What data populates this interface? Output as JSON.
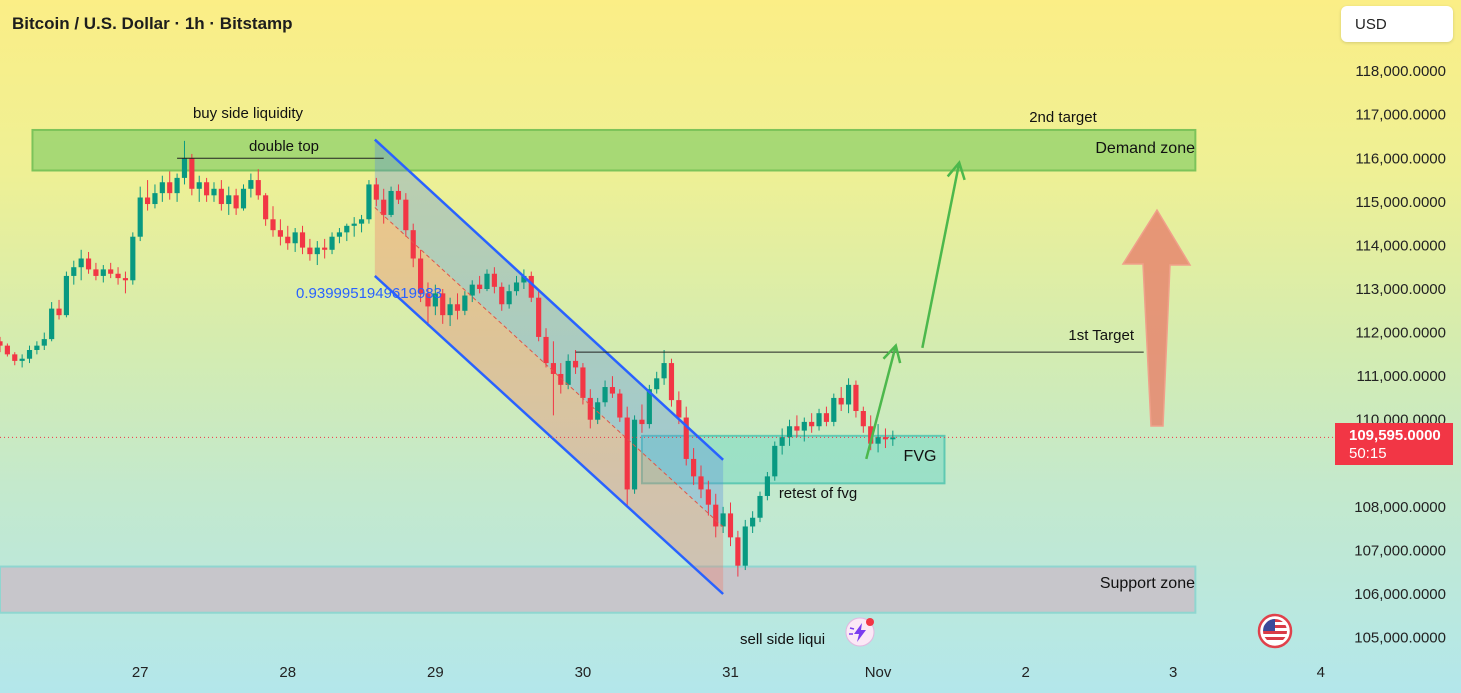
{
  "header": {
    "title": "Bitcoin / U.S. Dollar · 1h · Bitstamp",
    "currency_button": "USD"
  },
  "price_badge": {
    "price": "109,595.0000",
    "countdown": "50:15",
    "color": "#f23645"
  },
  "colors": {
    "up": "#089981",
    "down": "#f23645",
    "channel": "#2962ff",
    "zone_demand": "#8fd16b",
    "zone_support": "#c9c0c8",
    "fvg": "#7fdbc5",
    "target_arrow": "#4cb84c",
    "big_arrow": "#e6866f"
  },
  "annotations": {
    "buy_side_liquidity": "buy side liquidity",
    "double_top": "double top",
    "second_target": "2nd target",
    "demand_zone": "Demand zone",
    "first_target": "1st Target",
    "fvg": "FVG",
    "retest_of_fvg": "retest of fvg",
    "support_zone": "Support zone",
    "sell_side_liquidity": "sell side liqui",
    "fib_value": "0.9399951949619983"
  },
  "icons": {
    "flag": "us-flag-icon",
    "lightning": "lightning-badge-icon"
  },
  "chart_data": {
    "type": "candlestick",
    "y_axis": {
      "ticks": [
        "118,000.0000",
        "117,000.0000",
        "116,000.0000",
        "115,000.0000",
        "114,000.0000",
        "113,000.0000",
        "112,000.0000",
        "111,000.0000",
        "110,000.0000",
        "108,000.0000",
        "107,000.0000",
        "106,000.0000",
        "105,000.0000"
      ],
      "tick_values": [
        118000,
        117000,
        116000,
        115000,
        114000,
        113000,
        112000,
        111000,
        110000,
        108000,
        107000,
        106000,
        105000
      ],
      "ylim": [
        104600,
        118600
      ]
    },
    "x_axis": {
      "ticks": [
        "27",
        "28",
        "29",
        "30",
        "31",
        "Nov",
        "2",
        "3",
        "4"
      ],
      "tick_values": [
        27,
        28,
        29,
        30,
        31,
        32,
        33,
        34,
        35
      ],
      "xlim": [
        26.05,
        35.95
      ]
    },
    "last_price": 109595,
    "zones": [
      {
        "name": "Demand zone",
        "x": [
          26.27,
          34.15
        ],
        "y": [
          115720,
          116650
        ]
      },
      {
        "name": "Support zone",
        "x": [
          26.05,
          34.15
        ],
        "y": [
          105570,
          106630
        ]
      },
      {
        "name": "FVG",
        "x": [
          30.4,
          32.45
        ],
        "y": [
          108540,
          109630
        ]
      }
    ],
    "levels": [
      {
        "name": "1st Target",
        "price": 111550,
        "x": [
          29.95,
          33.8
        ]
      },
      {
        "name": "double top",
        "price": 116000,
        "x": [
          27.25,
          28.65
        ]
      }
    ],
    "channel": {
      "upper": [
        [
          28.59,
          116430
        ],
        [
          30.95,
          109080
        ]
      ],
      "lower": [
        [
          28.59,
          113300
        ],
        [
          30.95,
          106000
        ]
      ],
      "mid": [
        [
          28.59,
          114870
        ],
        [
          30.95,
          107540
        ]
      ]
    },
    "target_arrows": [
      {
        "from": [
          31.92,
          109100
        ],
        "to": [
          32.12,
          111700
        ]
      },
      {
        "from": [
          32.3,
          111650
        ],
        "to": [
          32.55,
          115900
        ]
      }
    ],
    "candles": [
      [
        26.05,
        111800,
        111900,
        111550,
        111700
      ],
      [
        26.1,
        111700,
        111750,
        111450,
        111500
      ],
      [
        26.15,
        111500,
        111550,
        111250,
        111350
      ],
      [
        26.2,
        111350,
        111500,
        111200,
        111400
      ],
      [
        26.25,
        111400,
        111700,
        111300,
        111600
      ],
      [
        26.3,
        111600,
        111800,
        111500,
        111700
      ],
      [
        26.35,
        111700,
        112000,
        111600,
        111850
      ],
      [
        26.4,
        111850,
        112700,
        111800,
        112550
      ],
      [
        26.45,
        112550,
        112750,
        112300,
        112400
      ],
      [
        26.5,
        112400,
        113400,
        112350,
        113300
      ],
      [
        26.55,
        113300,
        113650,
        113100,
        113500
      ],
      [
        26.6,
        113500,
        113900,
        113200,
        113700
      ],
      [
        26.65,
        113700,
        113850,
        113350,
        113450
      ],
      [
        26.7,
        113450,
        113600,
        113200,
        113300
      ],
      [
        26.75,
        113300,
        113550,
        113150,
        113450
      ],
      [
        26.8,
        113450,
        113600,
        113250,
        113350
      ],
      [
        26.85,
        113350,
        113500,
        113100,
        113250
      ],
      [
        26.9,
        113250,
        113400,
        112900,
        113200
      ],
      [
        26.95,
        113200,
        114300,
        113100,
        114200
      ],
      [
        27.0,
        114200,
        115350,
        114100,
        115100
      ],
      [
        27.05,
        115100,
        115500,
        114800,
        114950
      ],
      [
        27.1,
        114950,
        115400,
        114850,
        115200
      ],
      [
        27.15,
        115200,
        115600,
        115000,
        115450
      ],
      [
        27.2,
        115450,
        115700,
        115050,
        115200
      ],
      [
        27.25,
        115200,
        115650,
        115000,
        115550
      ],
      [
        27.3,
        115550,
        116400,
        115400,
        116000
      ],
      [
        27.35,
        116000,
        116100,
        115150,
        115300
      ],
      [
        27.4,
        115300,
        115600,
        115000,
        115450
      ],
      [
        27.45,
        115450,
        115550,
        115000,
        115150
      ],
      [
        27.5,
        115150,
        115450,
        115000,
        115300
      ],
      [
        27.55,
        115300,
        115500,
        114800,
        114950
      ],
      [
        27.6,
        114950,
        115350,
        114700,
        115150
      ],
      [
        27.65,
        115150,
        115300,
        114700,
        114850
      ],
      [
        27.7,
        114850,
        115400,
        114800,
        115300
      ],
      [
        27.75,
        115300,
        115650,
        115100,
        115500
      ],
      [
        27.8,
        115500,
        115750,
        115050,
        115150
      ],
      [
        27.85,
        115150,
        115200,
        114450,
        114600
      ],
      [
        27.9,
        114600,
        114900,
        114200,
        114350
      ],
      [
        27.95,
        114350,
        114600,
        114000,
        114200
      ],
      [
        28.0,
        114200,
        114450,
        113900,
        114050
      ],
      [
        28.05,
        114050,
        114400,
        113850,
        114300
      ],
      [
        28.1,
        114300,
        114450,
        113800,
        113950
      ],
      [
        28.15,
        113950,
        114150,
        113650,
        113800
      ],
      [
        28.2,
        113800,
        114100,
        113550,
        113950
      ],
      [
        28.25,
        113950,
        114150,
        113700,
        113900
      ],
      [
        28.3,
        113900,
        114300,
        113800,
        114200
      ],
      [
        28.35,
        114200,
        114400,
        114050,
        114300
      ],
      [
        28.4,
        114300,
        114500,
        114100,
        114450
      ],
      [
        28.45,
        114450,
        114650,
        114200,
        114500
      ],
      [
        28.5,
        114500,
        114700,
        114300,
        114600
      ],
      [
        28.55,
        114600,
        115500,
        114500,
        115400
      ],
      [
        28.6,
        115400,
        115550,
        114900,
        115050
      ],
      [
        28.65,
        115050,
        115300,
        114500,
        114700
      ],
      [
        28.7,
        114700,
        115350,
        114650,
        115250
      ],
      [
        28.75,
        115250,
        115400,
        114950,
        115050
      ],
      [
        28.8,
        115050,
        115200,
        114200,
        114350
      ],
      [
        28.85,
        114350,
        114500,
        113500,
        113700
      ],
      [
        28.9,
        113700,
        113900,
        112700,
        112900
      ],
      [
        28.95,
        112900,
        113150,
        112150,
        112600
      ],
      [
        29.0,
        112600,
        113100,
        112400,
        112900
      ],
      [
        29.05,
        112900,
        113000,
        112200,
        112400
      ],
      [
        29.1,
        112400,
        112800,
        112150,
        112650
      ],
      [
        29.15,
        112650,
        112900,
        112300,
        112500
      ],
      [
        29.2,
        112500,
        112950,
        112400,
        112850
      ],
      [
        29.25,
        112850,
        113200,
        112700,
        113100
      ],
      [
        29.3,
        113100,
        113300,
        112900,
        113000
      ],
      [
        29.35,
        113000,
        113450,
        112950,
        113350
      ],
      [
        29.4,
        113350,
        113500,
        112900,
        113050
      ],
      [
        29.45,
        113050,
        113150,
        112500,
        112650
      ],
      [
        29.5,
        112650,
        113100,
        112550,
        112950
      ],
      [
        29.55,
        112950,
        113300,
        112850,
        113150
      ],
      [
        29.6,
        113150,
        113450,
        113000,
        113300
      ],
      [
        29.65,
        113300,
        113400,
        112700,
        112800
      ],
      [
        29.7,
        112800,
        112950,
        111800,
        111900
      ],
      [
        29.75,
        111900,
        112100,
        111200,
        111300
      ],
      [
        29.8,
        111300,
        111800,
        110100,
        111050
      ],
      [
        29.85,
        111050,
        111300,
        110600,
        110800
      ],
      [
        29.9,
        110800,
        111500,
        110700,
        111350
      ],
      [
        29.95,
        111350,
        111600,
        111050,
        111200
      ],
      [
        30.0,
        111200,
        111300,
        110350,
        110500
      ],
      [
        30.05,
        110500,
        110700,
        109800,
        110000
      ],
      [
        30.1,
        110000,
        110500,
        109900,
        110400
      ],
      [
        30.15,
        110400,
        110900,
        110300,
        110750
      ],
      [
        30.2,
        110750,
        111000,
        110500,
        110600
      ],
      [
        30.25,
        110600,
        110700,
        109950,
        110050
      ],
      [
        30.3,
        110050,
        110300,
        108000,
        108400
      ],
      [
        30.35,
        108400,
        110100,
        108300,
        110000
      ],
      [
        30.4,
        110000,
        110350,
        109700,
        109900
      ],
      [
        30.45,
        109900,
        110800,
        109800,
        110700
      ],
      [
        30.5,
        110700,
        111100,
        110600,
        110950
      ],
      [
        30.55,
        110950,
        111600,
        110800,
        111300
      ],
      [
        30.6,
        111300,
        111400,
        110300,
        110450
      ],
      [
        30.65,
        110450,
        110650,
        109900,
        110050
      ],
      [
        30.7,
        110050,
        110300,
        108950,
        109100
      ],
      [
        30.75,
        109100,
        109350,
        108500,
        108700
      ],
      [
        30.8,
        108700,
        108950,
        108200,
        108400
      ],
      [
        30.85,
        108400,
        108600,
        107800,
        108050
      ],
      [
        30.9,
        108050,
        108300,
        107300,
        107550
      ],
      [
        30.95,
        107550,
        108000,
        107400,
        107850
      ],
      [
        31.0,
        107850,
        108100,
        107100,
        107300
      ],
      [
        31.05,
        107300,
        107450,
        106400,
        106650
      ],
      [
        31.1,
        106650,
        107700,
        106550,
        107550
      ],
      [
        31.15,
        107550,
        107900,
        107400,
        107750
      ],
      [
        31.2,
        107750,
        108350,
        107650,
        108250
      ],
      [
        31.25,
        108250,
        108800,
        108150,
        108700
      ],
      [
        31.3,
        108700,
        109500,
        108600,
        109400
      ],
      [
        31.35,
        109400,
        109800,
        109200,
        109600
      ],
      [
        31.4,
        109600,
        110000,
        109400,
        109850
      ],
      [
        31.45,
        109850,
        110100,
        109600,
        109750
      ],
      [
        31.5,
        109750,
        110050,
        109500,
        109950
      ],
      [
        31.55,
        109950,
        110150,
        109700,
        109850
      ],
      [
        31.6,
        109850,
        110250,
        109750,
        110150
      ],
      [
        31.65,
        110150,
        110300,
        109850,
        109950
      ],
      [
        31.7,
        109950,
        110600,
        109850,
        110500
      ],
      [
        31.75,
        110500,
        110750,
        110200,
        110350
      ],
      [
        31.8,
        110350,
        110950,
        110150,
        110800
      ],
      [
        31.85,
        110800,
        110900,
        110050,
        110200
      ],
      [
        31.9,
        110200,
        110300,
        109700,
        109850
      ],
      [
        31.95,
        109850,
        110100,
        109300,
        109450
      ],
      [
        32.0,
        109450,
        109900,
        109250,
        109600
      ],
      [
        32.05,
        109600,
        109800,
        109350,
        109550
      ],
      [
        32.1,
        109550,
        109750,
        109400,
        109595
      ]
    ]
  }
}
